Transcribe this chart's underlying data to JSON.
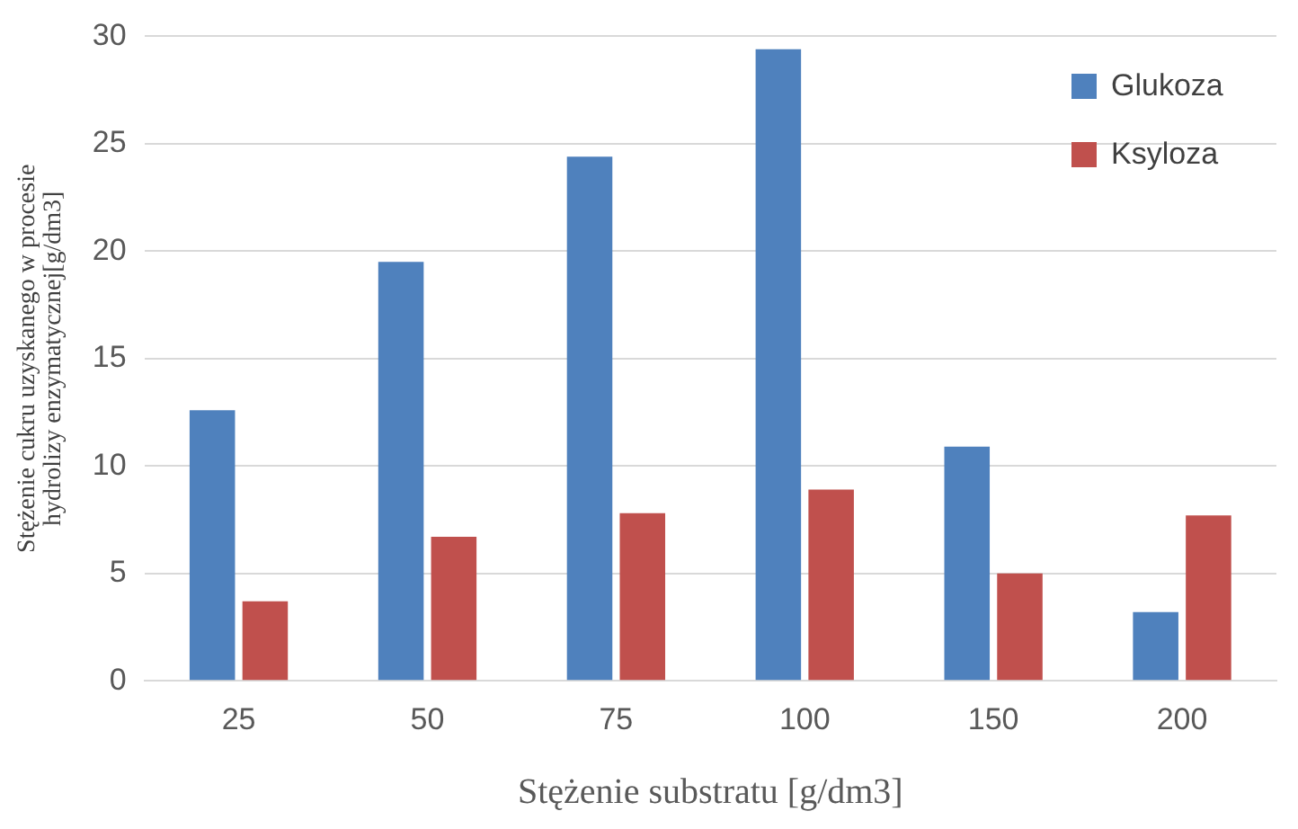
{
  "chart_data": {
    "type": "bar",
    "xlabel": "Stężenie substratu [g/dm3]",
    "ylabel": "Stężenie cukru uzyskanego w procesie hydrolizy enzymatycznej[g/dm3]",
    "categories": [
      "25",
      "50",
      "75",
      "100",
      "150",
      "200"
    ],
    "series": [
      {
        "name": "Glukoza",
        "color": "#4f81bd",
        "values": [
          12.6,
          19.5,
          24.4,
          29.4,
          10.9,
          3.2
        ]
      },
      {
        "name": "Ksyloza",
        "color": "#c0504d",
        "values": [
          3.7,
          6.7,
          7.8,
          8.9,
          5.0,
          7.7
        ]
      }
    ],
    "ylim": [
      0,
      30
    ],
    "yticks": [
      0,
      5,
      10,
      15,
      20,
      25,
      30
    ],
    "grid": "y",
    "legend": "top right"
  }
}
